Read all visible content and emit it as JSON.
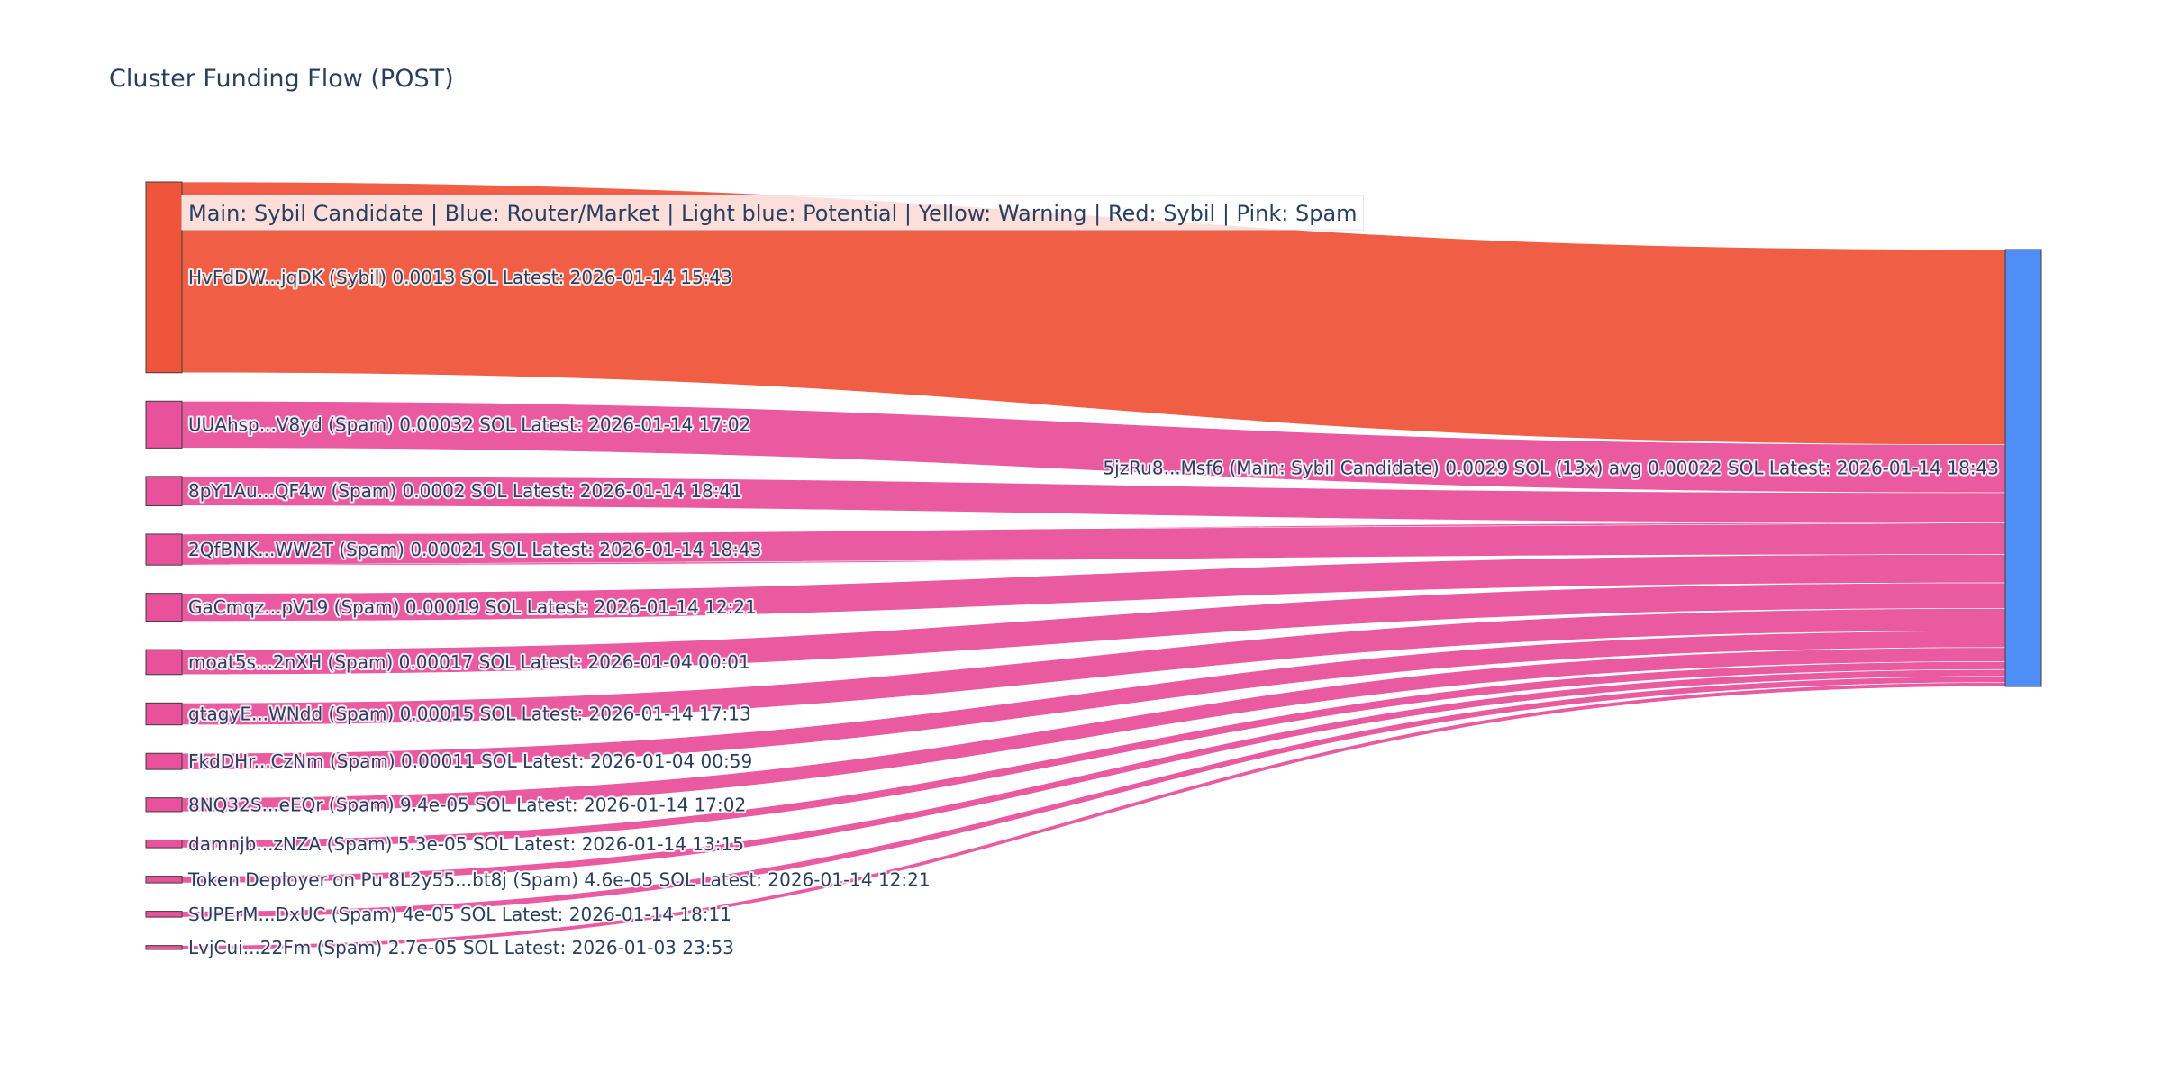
{
  "title": "Cluster Funding Flow (POST)",
  "legend": "Main: Sybil Candidate  |  Blue: Router/Market | Light blue: Potential | Yellow: Warning | Red: Sybil | Pink: Spam",
  "colors": {
    "sybil": "#ef553b",
    "spam": "#e9519c",
    "main": "#4f8ef7",
    "node_border": "#3d3d3d",
    "text": "#2a3f5f"
  },
  "chart_data": {
    "type": "sankey",
    "target": {
      "label": "5jzRu8...Msf6 (Main: Sybil Candidate) 0.0029 SOL (13x) avg 0.00022 SOL Latest: 2026-01-14 18:43",
      "category": "main",
      "value": 0.0029
    },
    "sources": [
      {
        "label": "HvFdDW...jqDK (Sybil) 0.0013 SOL Latest: 2026-01-14 15:43",
        "category": "sybil",
        "value": 0.0013
      },
      {
        "label": "UUAhsp...V8yd (Spam) 0.00032 SOL Latest: 2026-01-14 17:02",
        "category": "spam",
        "value": 0.00032
      },
      {
        "label": "8pY1Au...QF4w (Spam) 0.0002 SOL Latest: 2026-01-14 18:41",
        "category": "spam",
        "value": 0.0002
      },
      {
        "label": "2QfBNK...WW2T (Spam) 0.00021 SOL Latest: 2026-01-14 18:43",
        "category": "spam",
        "value": 0.00021
      },
      {
        "label": "GaCmqz...pV19 (Spam) 0.00019 SOL Latest: 2026-01-14 12:21",
        "category": "spam",
        "value": 0.00019
      },
      {
        "label": "moat5s...2nXH (Spam) 0.00017 SOL Latest: 2026-01-04 00:01",
        "category": "spam",
        "value": 0.00017
      },
      {
        "label": "gtagyE...WNdd (Spam) 0.00015 SOL Latest: 2026-01-14 17:13",
        "category": "spam",
        "value": 0.00015
      },
      {
        "label": "FkdDHr...CzNm (Spam) 0.00011 SOL Latest: 2026-01-04 00:59",
        "category": "spam",
        "value": 0.00011
      },
      {
        "label": "8NQ32S...eEQr (Spam) 9.4e-05 SOL Latest: 2026-01-14 17:02",
        "category": "spam",
        "value": 9.4e-05
      },
      {
        "label": "damnjb...zNZA (Spam) 5.3e-05 SOL Latest: 2026-01-14 13:15",
        "category": "spam",
        "value": 5.3e-05
      },
      {
        "label": "Token Deployer on Pu 8L2y55...bt8j (Spam) 4.6e-05 SOL Latest: 2026-01-14 12:21",
        "category": "spam",
        "value": 4.6e-05
      },
      {
        "label": "SUPErM...DxUC (Spam) 4e-05 SOL Latest: 2026-01-14 18:11",
        "category": "spam",
        "value": 4e-05
      },
      {
        "label": "LvjCui...22Fm (Spam) 2.7e-05 SOL Latest: 2026-01-03 23:53",
        "category": "spam",
        "value": 2.7e-05
      }
    ]
  }
}
